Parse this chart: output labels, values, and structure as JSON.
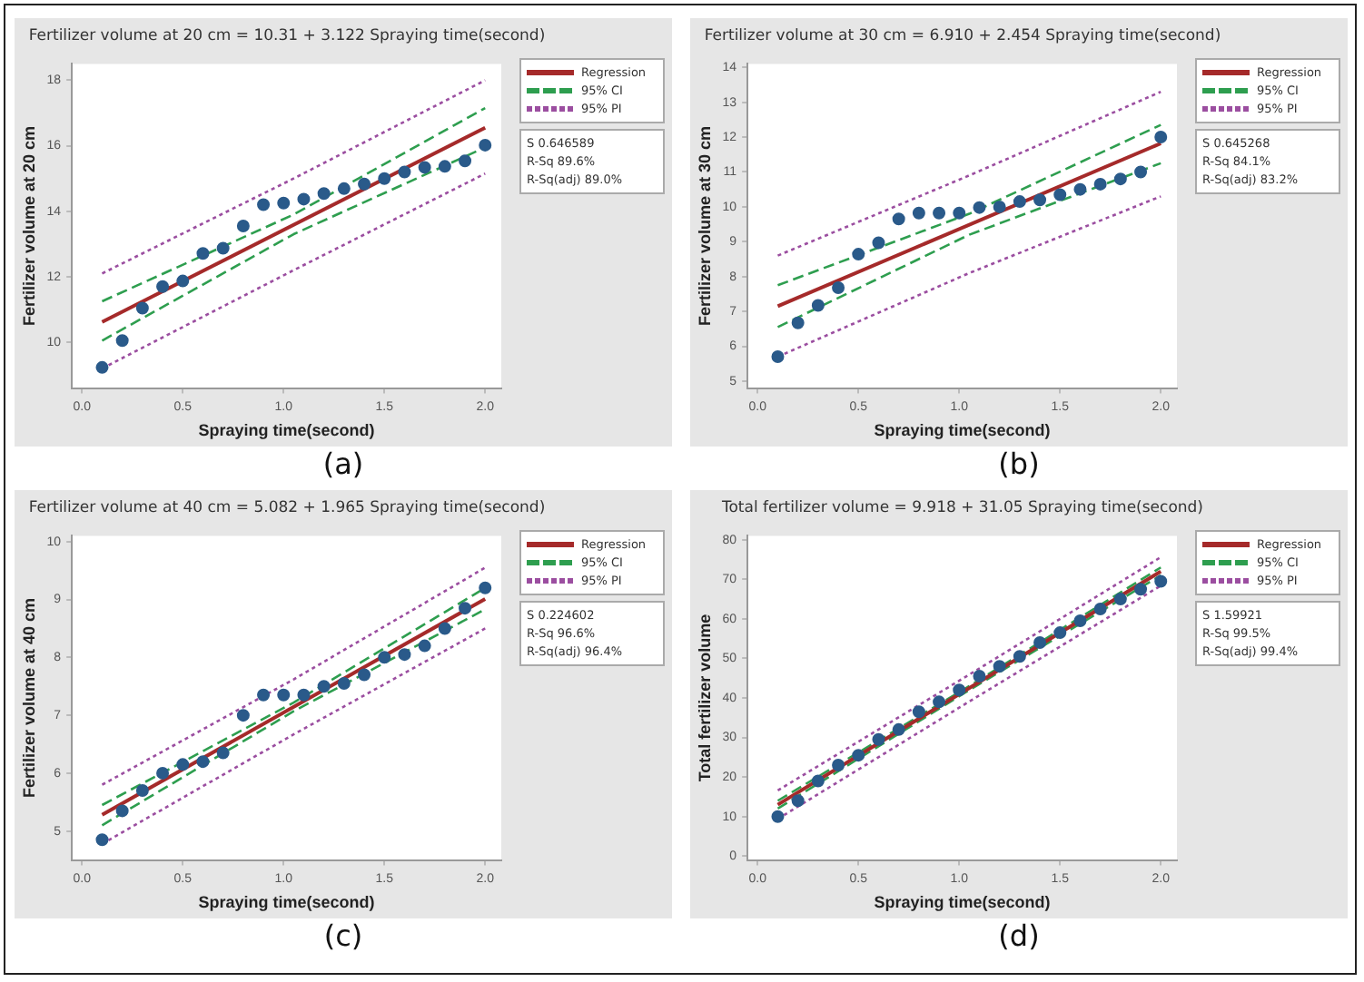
{
  "chart_data": [
    {
      "type": "scatter",
      "title": "Fertilizer volume at 20 cm = 10.31 + 3.122 Spraying time(second)",
      "xlabel": "Spraying time(second)",
      "ylabel": "Fertilizer volume at 20 cm",
      "x": [
        0.1,
        0.2,
        0.3,
        0.4,
        0.5,
        0.6,
        0.7,
        0.8,
        0.9,
        1.0,
        1.1,
        1.2,
        1.3,
        1.4,
        1.5,
        1.6,
        1.7,
        1.8,
        1.9,
        2.0
      ],
      "xlim": [
        -0.05,
        2.08
      ],
      "xticks": [
        {
          "value": 0,
          "label": "0.0"
        },
        {
          "value": 0.5,
          "label": "0.5"
        },
        {
          "value": 1,
          "label": "1.0"
        },
        {
          "value": 1.5,
          "label": "1.5"
        },
        {
          "value": 2,
          "label": "2.0"
        }
      ],
      "ylim": [
        8.6,
        18.5
      ],
      "yticks": [
        10,
        12,
        14,
        16,
        18
      ],
      "legend": "top right",
      "series": [
        {
          "type": "scatter",
          "marker": "circle",
          "color": "#2a5a8a",
          "values": [
            9.23,
            10.05,
            11.04,
            11.7,
            11.87,
            12.71,
            12.87,
            13.55,
            14.2,
            14.25,
            14.37,
            14.54,
            14.69,
            14.83,
            15.0,
            15.2,
            15.34,
            15.37,
            15.54,
            16.02
          ]
        },
        {
          "type": "line",
          "name": "Regression",
          "color": "#a52a2a",
          "line_style": "solid",
          "x": [
            0.1,
            2.0
          ],
          "values": [
            10.62,
            16.55
          ]
        },
        {
          "type": "line",
          "name": "95% CI",
          "color": "#2e9e4f",
          "line_style": "dashed",
          "x": [
            0.1,
            1.05,
            2.0
          ],
          "values": [
            11.25,
            13.9,
            17.15
          ]
        },
        {
          "type": "line",
          "color": "#2e9e4f",
          "line_style": "dashed",
          "x": [
            0.1,
            1.05,
            2.0
          ],
          "values": [
            10.05,
            13.3,
            15.95
          ]
        },
        {
          "type": "line",
          "name": "95% PI",
          "color": "#9b4ea0",
          "line_style": "dotted",
          "x": [
            0.1,
            1.05,
            2.0
          ],
          "values": [
            12.1,
            15.0,
            18.0
          ]
        },
        {
          "type": "line",
          "color": "#9b4ea0",
          "line_style": "dotted",
          "x": [
            0.1,
            1.05,
            2.0
          ],
          "values": [
            9.2,
            12.2,
            15.15
          ]
        }
      ],
      "annotations": [
        "S 0.646589",
        "R-Sq 89.6%",
        "R-Sq(adj) 89.0%",
        "(a)"
      ]
    },
    {
      "type": "scatter",
      "title": "Fertilizer volume at 30 cm = 6.910 + 2.454 Spraying time(second)",
      "xlabel": "Spraying time(second)",
      "ylabel": "Fertilizer volume at 30 cm",
      "x": [
        0.1,
        0.2,
        0.3,
        0.4,
        0.5,
        0.6,
        0.7,
        0.8,
        0.9,
        1.0,
        1.1,
        1.2,
        1.3,
        1.4,
        1.5,
        1.6,
        1.7,
        1.8,
        1.9,
        2.0
      ],
      "xlim": [
        -0.05,
        2.08
      ],
      "xticks": [
        {
          "value": 0,
          "label": "0.0"
        },
        {
          "value": 0.5,
          "label": "0.5"
        },
        {
          "value": 1,
          "label": "1.0"
        },
        {
          "value": 1.5,
          "label": "1.5"
        },
        {
          "value": 2,
          "label": "2.0"
        }
      ],
      "ylim": [
        4.8,
        14.1
      ],
      "yticks": [
        5,
        6,
        7,
        8,
        9,
        10,
        11,
        12,
        13,
        14
      ],
      "legend": "top right",
      "series": [
        {
          "type": "scatter",
          "marker": "circle",
          "color": "#2a5a8a",
          "values": [
            5.7,
            6.67,
            7.17,
            7.68,
            8.64,
            8.97,
            9.65,
            9.82,
            9.82,
            9.82,
            9.98,
            10.0,
            10.15,
            10.2,
            10.35,
            10.5,
            10.65,
            10.8,
            11.0,
            12.0
          ]
        },
        {
          "type": "line",
          "name": "Regression",
          "color": "#a52a2a",
          "line_style": "solid",
          "x": [
            0.1,
            2.0
          ],
          "values": [
            7.15,
            11.82
          ]
        },
        {
          "type": "line",
          "name": "95% CI",
          "color": "#2e9e4f",
          "line_style": "dashed",
          "x": [
            0.1,
            1.05,
            2.0
          ],
          "values": [
            7.75,
            9.8,
            12.35
          ]
        },
        {
          "type": "line",
          "color": "#2e9e4f",
          "line_style": "dashed",
          "x": [
            0.1,
            1.05,
            2.0
          ],
          "values": [
            6.55,
            9.2,
            11.25
          ]
        },
        {
          "type": "line",
          "name": "95% PI",
          "color": "#9b4ea0",
          "line_style": "dotted",
          "x": [
            0.1,
            1.05,
            2.0
          ],
          "values": [
            8.6,
            10.9,
            13.3
          ]
        },
        {
          "type": "line",
          "color": "#9b4ea0",
          "line_style": "dotted",
          "x": [
            0.1,
            1.05,
            2.0
          ],
          "values": [
            5.7,
            8.1,
            10.3
          ]
        }
      ],
      "annotations": [
        "S 0.645268",
        "R-Sq 84.1%",
        "R-Sq(adj) 83.2%",
        "(b)"
      ]
    },
    {
      "type": "scatter",
      "title": "Fertilizer volume at 40 cm = 5.082 + 1.965 Spraying time(second)",
      "xlabel": "Spraying time(second)",
      "ylabel": "Fertilizer volume at 40 cm",
      "x": [
        0.1,
        0.2,
        0.3,
        0.4,
        0.5,
        0.6,
        0.7,
        0.8,
        0.9,
        1.0,
        1.1,
        1.2,
        1.3,
        1.4,
        1.5,
        1.6,
        1.7,
        1.8,
        1.9,
        2.0
      ],
      "xlim": [
        -0.05,
        2.08
      ],
      "xticks": [
        {
          "value": 0,
          "label": "0.0"
        },
        {
          "value": 0.5,
          "label": "0.5"
        },
        {
          "value": 1,
          "label": "1.0"
        },
        {
          "value": 1.5,
          "label": "1.5"
        },
        {
          "value": 2,
          "label": "2.0"
        }
      ],
      "ylim": [
        4.5,
        10.1
      ],
      "yticks": [
        5,
        6,
        7,
        8,
        9,
        10
      ],
      "legend": "top right",
      "series": [
        {
          "type": "scatter",
          "marker": "circle",
          "color": "#2a5a8a",
          "values": [
            4.85,
            5.35,
            5.7,
            6.0,
            6.15,
            6.2,
            6.35,
            7.0,
            7.35,
            7.35,
            7.35,
            7.5,
            7.55,
            7.7,
            8.0,
            8.05,
            8.2,
            8.5,
            8.85,
            9.2
          ]
        },
        {
          "type": "line",
          "name": "Regression",
          "color": "#a52a2a",
          "line_style": "solid",
          "x": [
            0.1,
            2.0
          ],
          "values": [
            5.28,
            9.01
          ]
        },
        {
          "type": "line",
          "name": "95% CI",
          "color": "#2e9e4f",
          "line_style": "dashed",
          "x": [
            0.1,
            1.05,
            2.0
          ],
          "values": [
            5.45,
            7.22,
            9.2
          ]
        },
        {
          "type": "line",
          "color": "#2e9e4f",
          "line_style": "dashed",
          "x": [
            0.1,
            1.05,
            2.0
          ],
          "values": [
            5.1,
            7.07,
            8.83
          ]
        },
        {
          "type": "line",
          "name": "95% PI",
          "color": "#9b4ea0",
          "line_style": "dotted",
          "x": [
            0.1,
            1.05,
            2.0
          ],
          "values": [
            5.8,
            7.62,
            9.55
          ]
        },
        {
          "type": "line",
          "color": "#9b4ea0",
          "line_style": "dotted",
          "x": [
            0.1,
            1.05,
            2.0
          ],
          "values": [
            4.78,
            6.67,
            8.5
          ]
        }
      ],
      "annotations": [
        "S 0.224602",
        "R-Sq 96.6%",
        "R-Sq(adj) 96.4%",
        "(c)"
      ]
    },
    {
      "type": "scatter",
      "title": "Total fertilizer volume = 9.918 + 31.05 Spraying time(second)",
      "xlabel": "Spraying time(second)",
      "ylabel": "Total fertilizer volume",
      "x": [
        0.1,
        0.2,
        0.3,
        0.4,
        0.5,
        0.6,
        0.7,
        0.8,
        0.9,
        1.0,
        1.1,
        1.2,
        1.3,
        1.4,
        1.5,
        1.6,
        1.7,
        1.8,
        1.9,
        2.0
      ],
      "xlim": [
        -0.05,
        2.08
      ],
      "xticks": [
        {
          "value": 0,
          "label": "0.0"
        },
        {
          "value": 0.5,
          "label": "0.5"
        },
        {
          "value": 1,
          "label": "1.0"
        },
        {
          "value": 1.5,
          "label": "1.5"
        },
        {
          "value": 2,
          "label": "2.0"
        }
      ],
      "ylim": [
        -1,
        81
      ],
      "yticks": [
        0,
        10,
        20,
        30,
        40,
        50,
        60,
        70,
        80
      ],
      "legend": "top right",
      "series": [
        {
          "type": "scatter",
          "marker": "circle",
          "color": "#2a5a8a",
          "values": [
            10,
            14,
            19,
            23,
            25.5,
            29.5,
            32,
            36.5,
            39,
            42,
            45.5,
            48,
            50.5,
            54,
            56.5,
            59.5,
            62.5,
            65,
            67.5,
            69.5
          ]
        },
        {
          "type": "line",
          "name": "Regression",
          "color": "#a52a2a",
          "line_style": "solid",
          "x": [
            0.1,
            2.0
          ],
          "values": [
            13.0,
            72.0
          ]
        },
        {
          "type": "line",
          "name": "95% CI",
          "color": "#2e9e4f",
          "line_style": "dashed",
          "x": [
            0.1,
            1.05,
            2.0
          ],
          "values": [
            14.0,
            43.0,
            73.0
          ]
        },
        {
          "type": "line",
          "color": "#2e9e4f",
          "line_style": "dashed",
          "x": [
            0.1,
            1.05,
            2.0
          ],
          "values": [
            12.0,
            42.0,
            71.0
          ]
        },
        {
          "type": "line",
          "name": "95% PI",
          "color": "#9b4ea0",
          "line_style": "dotted",
          "x": [
            0.1,
            1.05,
            2.0
          ],
          "values": [
            16.6,
            45.9,
            75.6
          ]
        },
        {
          "type": "line",
          "color": "#9b4ea0",
          "line_style": "dotted",
          "x": [
            0.1,
            1.05,
            2.0
          ],
          "values": [
            9.4,
            39.1,
            68.4
          ]
        }
      ],
      "annotations": [
        "S 1.59921",
        "R-Sq 99.5%",
        "R-Sq(adj) 99.4%",
        "(d)"
      ]
    }
  ]
}
